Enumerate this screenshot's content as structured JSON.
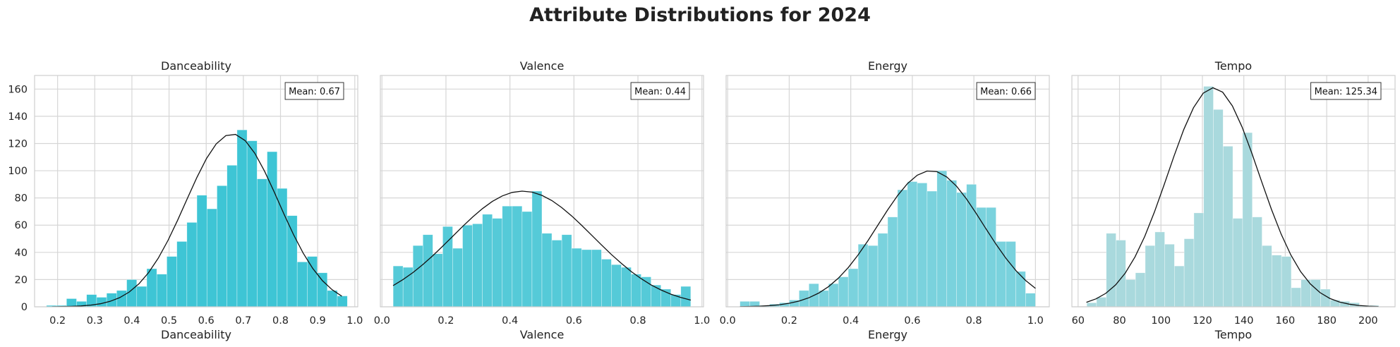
{
  "figure": {
    "title": "Attribute Distributions for 2024"
  },
  "chart_data": [
    {
      "type": "bar",
      "title": "Danceability",
      "xlabel": "Danceability",
      "ylabel": "",
      "xlim": [
        0.138,
        1.008
      ],
      "ylim": [
        0,
        170
      ],
      "xticks": [
        0.2,
        0.3,
        0.4,
        0.5,
        0.6,
        0.7,
        0.8,
        0.9,
        1.0
      ],
      "xtick_labels": [
        "0.2",
        "0.3",
        "0.4",
        "0.5",
        "0.6",
        "0.7",
        "0.8",
        "0.9",
        "1.0"
      ],
      "yticks": [
        0,
        20,
        40,
        60,
        80,
        100,
        120,
        140,
        160
      ],
      "ytick_labels": [
        "0",
        "20",
        "40",
        "60",
        "80",
        "100",
        "120",
        "140",
        "160"
      ],
      "bin_edges": [
        0.17,
        0.197,
        0.224,
        0.251,
        0.278,
        0.305,
        0.332,
        0.359,
        0.386,
        0.413,
        0.44,
        0.467,
        0.494,
        0.521,
        0.548,
        0.575,
        0.602,
        0.629,
        0.656,
        0.683,
        0.71,
        0.737,
        0.764,
        0.791,
        0.818,
        0.845,
        0.872,
        0.899,
        0.926,
        0.953,
        0.98
      ],
      "counts": [
        1,
        1,
        6,
        4,
        9,
        7,
        10,
        12,
        20,
        15,
        28,
        24,
        37,
        48,
        62,
        82,
        72,
        89,
        104,
        130,
        122,
        94,
        114,
        87,
        67,
        33,
        37,
        25,
        12,
        8
      ],
      "curve": {
        "mean": 0.67,
        "sd": 0.125,
        "peak": 127,
        "x_range": [
          0.185,
          0.965
        ]
      },
      "annotation": "Mean: 0.67",
      "bar_color": "#3ec5d5"
    },
    {
      "type": "bar",
      "title": "Valence",
      "xlabel": "Valence",
      "ylabel": "",
      "xlim": [
        -0.005,
        1.005
      ],
      "ylim": [
        0,
        170
      ],
      "xticks": [
        0.0,
        0.2,
        0.4,
        0.6,
        0.8,
        1.0
      ],
      "xtick_labels": [
        "0.0",
        "0.2",
        "0.4",
        "0.6",
        "0.8",
        "1.0"
      ],
      "yticks": [
        0,
        20,
        40,
        60,
        80,
        100,
        120,
        140,
        160
      ],
      "ytick_labels": [],
      "bin_edges": [
        0.035,
        0.066,
        0.097,
        0.128,
        0.159,
        0.19,
        0.221,
        0.252,
        0.283,
        0.314,
        0.345,
        0.376,
        0.407,
        0.438,
        0.469,
        0.5,
        0.531,
        0.562,
        0.593,
        0.624,
        0.655,
        0.686,
        0.717,
        0.748,
        0.779,
        0.81,
        0.841,
        0.872,
        0.903,
        0.934,
        0.965
      ],
      "counts": [
        30,
        29,
        45,
        53,
        39,
        59,
        43,
        60,
        61,
        68,
        65,
        74,
        74,
        70,
        85,
        54,
        49,
        53,
        43,
        42,
        42,
        35,
        31,
        29,
        24,
        22,
        16,
        13,
        9,
        15
      ],
      "curve": {
        "mean": 0.44,
        "sd": 0.22,
        "peak": 85,
        "x_range": [
          0.035,
          0.965
        ]
      },
      "annotation": "Mean: 0.44",
      "bar_color": "#55cad8"
    },
    {
      "type": "bar",
      "title": "Energy",
      "xlabel": "Energy",
      "ylabel": "",
      "xlim": [
        -0.005,
        1.045
      ],
      "ylim": [
        0,
        170
      ],
      "xticks": [
        0.0,
        0.2,
        0.4,
        0.6,
        0.8,
        1.0
      ],
      "xtick_labels": [
        "0.0",
        "0.2",
        "0.4",
        "0.6",
        "0.8",
        "1.0"
      ],
      "yticks": [
        0,
        20,
        40,
        60,
        80,
        100,
        120,
        140,
        160
      ],
      "ytick_labels": [],
      "bin_edges": [
        0.04,
        0.072,
        0.104,
        0.136,
        0.168,
        0.2,
        0.232,
        0.264,
        0.296,
        0.328,
        0.36,
        0.392,
        0.424,
        0.456,
        0.488,
        0.52,
        0.552,
        0.584,
        0.616,
        0.648,
        0.68,
        0.712,
        0.744,
        0.776,
        0.808,
        0.84,
        0.872,
        0.904,
        0.936,
        0.968,
        1.0
      ],
      "counts": [
        4,
        4,
        1,
        2,
        3,
        5,
        12,
        17,
        12,
        17,
        22,
        28,
        46,
        45,
        54,
        66,
        86,
        92,
        91,
        85,
        100,
        93,
        84,
        90,
        73,
        73,
        48,
        48,
        26,
        10
      ],
      "curve": {
        "mean": 0.66,
        "sd": 0.17,
        "peak": 100,
        "x_range": [
          0.04,
          1.0
        ]
      },
      "annotation": "Mean: 0.66",
      "bar_color": "#7ad2dd"
    },
    {
      "type": "bar",
      "title": "Tempo",
      "xlabel": "Tempo",
      "ylabel": "",
      "xlim": [
        57,
        213
      ],
      "ylim": [
        0,
        170
      ],
      "xticks": [
        60,
        80,
        100,
        120,
        140,
        160,
        180,
        200
      ],
      "xtick_labels": [
        "60",
        "80",
        "100",
        "120",
        "140",
        "160",
        "180",
        "200"
      ],
      "yticks": [
        0,
        20,
        40,
        60,
        80,
        100,
        120,
        140,
        160
      ],
      "ytick_labels": [],
      "bin_edges": [
        64.2,
        68.9,
        73.6,
        78.3,
        83.0,
        87.7,
        92.4,
        97.1,
        101.8,
        106.5,
        111.2,
        115.9,
        120.6,
        125.3,
        130.0,
        134.7,
        139.4,
        144.1,
        148.8,
        153.5,
        158.2,
        162.9,
        167.6,
        172.3,
        177.0,
        181.7,
        186.4,
        191.1,
        195.8,
        200.5,
        205.2
      ],
      "counts": [
        3,
        7,
        54,
        49,
        20,
        25,
        45,
        55,
        46,
        30,
        50,
        69,
        162,
        145,
        118,
        65,
        128,
        66,
        45,
        38,
        37,
        14,
        20,
        20,
        13,
        5,
        4,
        3,
        1,
        1
      ],
      "curve": {
        "mean": 125.34,
        "sd": 22,
        "peak": 161,
        "x_range": [
          64,
          205
        ]
      },
      "annotation": "Mean: 125.34",
      "bar_color": "#a9d9dd"
    }
  ]
}
